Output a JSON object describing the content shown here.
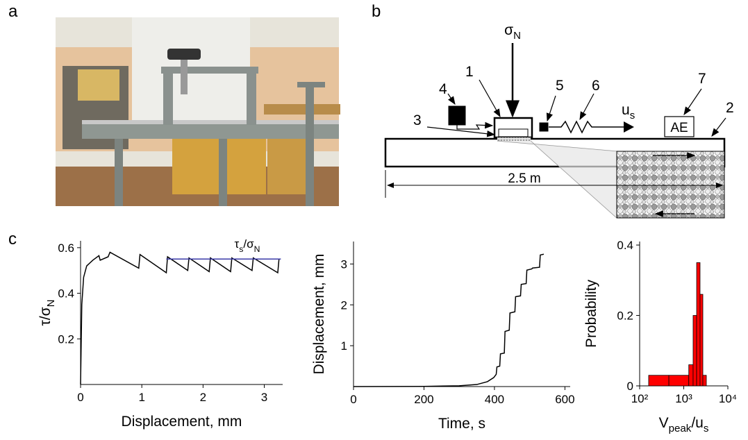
{
  "panel_labels": [
    "a",
    "b",
    "c"
  ],
  "diagram": {
    "sigma": [
      "σ",
      "N"
    ],
    "labels": [
      "1",
      "2",
      "3",
      "4",
      "5",
      "6",
      "7"
    ],
    "us": [
      "u",
      "s"
    ],
    "ae": "AE",
    "length": "2.5 m"
  },
  "chart_data": [
    {
      "type": "line",
      "xlabel": "Displacement, mm",
      "ylabel": [
        "τ/σ",
        "N"
      ],
      "xlim": [
        0,
        3.3
      ],
      "ylim": [
        0,
        0.63
      ],
      "xticks": [
        0,
        1,
        2,
        3
      ],
      "yticks": [
        0.2,
        0.4,
        0.6
      ],
      "annotation": [
        "τ",
        "s",
        "/σ",
        "N"
      ],
      "series": [
        {
          "color": "#000000",
          "x": [
            0,
            0.02,
            0.05,
            0.1,
            0.2,
            0.3,
            0.32,
            0.45,
            0.48,
            0.95,
            0.97,
            1.4,
            1.42,
            1.75,
            1.77,
            2.1,
            2.12,
            2.45,
            2.47,
            2.8,
            2.82,
            3.22,
            3.24,
            3.25
          ],
          "values": [
            0,
            0.35,
            0.47,
            0.52,
            0.545,
            0.565,
            0.545,
            0.56,
            0.58,
            0.51,
            0.57,
            0.49,
            0.56,
            0.5,
            0.555,
            0.495,
            0.555,
            0.495,
            0.555,
            0.5,
            0.555,
            0.49,
            0.55,
            0.55
          ]
        },
        {
          "color": "#3a3aa8",
          "x": [
            1.4,
            3.27
          ],
          "values": [
            0.55,
            0.55
          ]
        }
      ]
    },
    {
      "type": "line",
      "xlabel": "Time, s",
      "ylabel": "Displacement, mm",
      "xlim": [
        0,
        615
      ],
      "ylim": [
        0,
        3.55
      ],
      "xticks": [
        0,
        200,
        400,
        600
      ],
      "yticks": [
        1,
        2,
        3
      ],
      "series": [
        {
          "color": "#000000",
          "x": [
            0,
            200,
            300,
            350,
            380,
            398,
            405,
            407,
            415,
            417,
            428,
            430,
            442,
            444,
            458,
            460,
            474,
            476,
            490,
            492,
            506,
            508,
            528,
            530,
            540
          ],
          "values": [
            0,
            0.005,
            0.02,
            0.05,
            0.12,
            0.22,
            0.3,
            0.48,
            0.5,
            0.8,
            0.82,
            1.35,
            1.38,
            1.8,
            1.83,
            2.2,
            2.22,
            2.5,
            2.52,
            2.85,
            2.88,
            2.9,
            2.92,
            3.22,
            3.24
          ]
        }
      ]
    },
    {
      "type": "histogram",
      "xlabel": [
        "V",
        "peak",
        "/u",
        "s"
      ],
      "ylabel": "Probability",
      "xlog": true,
      "xlim": [
        100,
        10000
      ],
      "ylim": [
        0,
        0.41
      ],
      "xticks": [
        {
          "value": 100,
          "label": "10²"
        },
        {
          "value": 1000,
          "label": "10³"
        },
        {
          "value": 10000,
          "label": "10⁴"
        }
      ],
      "yticks": [
        0,
        0.2,
        0.4
      ],
      "color": "#ff0000",
      "bins": [
        160,
        460,
        1300,
        1630,
        1960,
        2340,
        2710,
        3250
      ],
      "values": [
        0.03,
        0.03,
        0.06,
        0.2,
        0.35,
        0.26,
        0.03
      ]
    }
  ]
}
